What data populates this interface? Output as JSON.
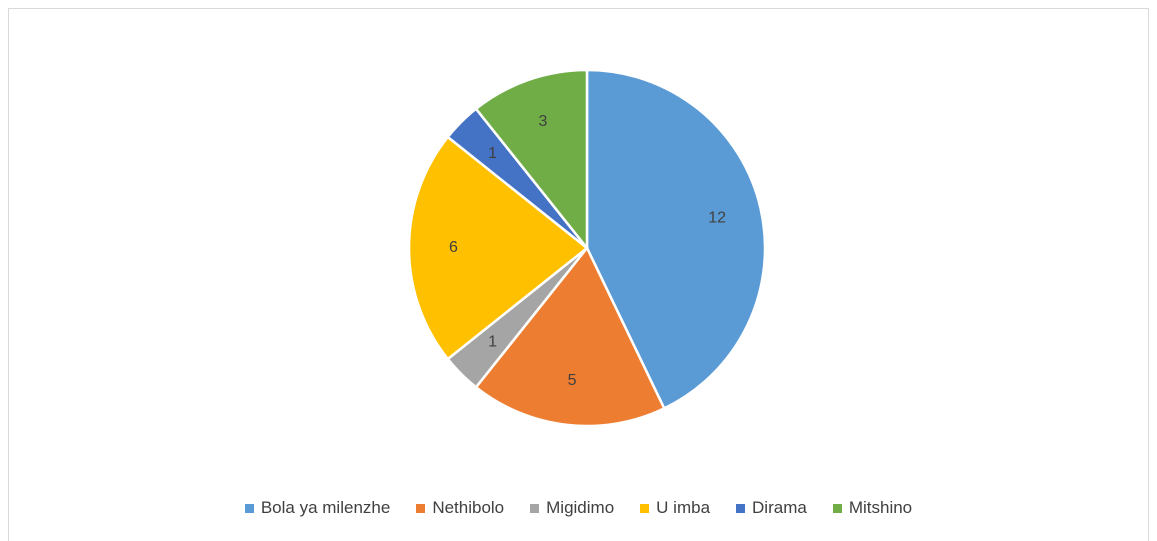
{
  "chart_data": {
    "type": "pie",
    "categories": [
      "Bola ya milenzhe",
      "Nethibolo",
      "Migidimo",
      "U imba",
      "Dirama",
      "Mitshino"
    ],
    "values": [
      12,
      5,
      1,
      6,
      1,
      3
    ],
    "colors": [
      "#5b9bd5",
      "#ed7d31",
      "#a5a5a5",
      "#ffc000",
      "#4472c4",
      "#70ad47"
    ],
    "legend": "bottom"
  }
}
